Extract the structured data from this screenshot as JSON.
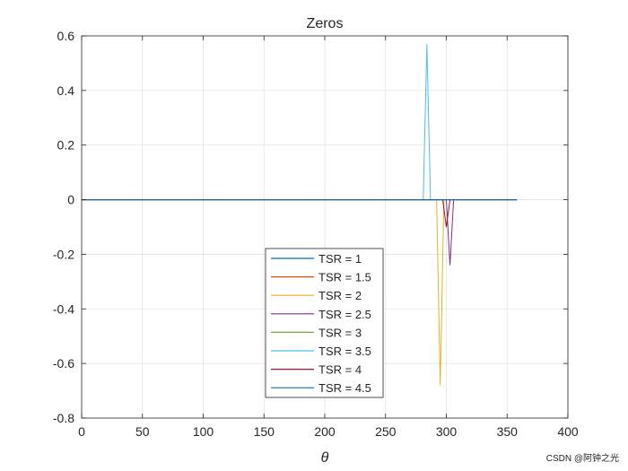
{
  "chart_data": {
    "type": "line",
    "title": "Zeros",
    "xlabel": "θ",
    "ylabel": "",
    "xlim": [
      0,
      400
    ],
    "ylim": [
      -0.8,
      0.6
    ],
    "xticks": [
      0,
      50,
      100,
      150,
      200,
      250,
      300,
      350,
      400
    ],
    "xtick_labels": [
      "0",
      "50",
      "100",
      "150",
      "200",
      "250",
      "300",
      "350",
      "400"
    ],
    "yticks": [
      -0.8,
      -0.6,
      -0.4,
      -0.2,
      0,
      0.2,
      0.4,
      0.6
    ],
    "ytick_labels": [
      "-0.8",
      "-0.6",
      "-0.4",
      "-0.2",
      "0",
      "0.2",
      "0.4",
      "0.6"
    ],
    "grid": true,
    "legend_position": "bottom-center",
    "series": [
      {
        "name": "TSR = 1",
        "color": "#0072BD",
        "x": [
          0,
          358
        ],
        "y": [
          0,
          0
        ]
      },
      {
        "name": "TSR = 1.5",
        "color": "#D95319",
        "x": [
          0,
          358
        ],
        "y": [
          0,
          0
        ]
      },
      {
        "name": "TSR = 2",
        "color": "#EDB120",
        "x": [
          0,
          292,
          295,
          298,
          358
        ],
        "y": [
          0,
          0,
          -0.68,
          0,
          0
        ]
      },
      {
        "name": "TSR = 2.5",
        "color": "#7E2F8E",
        "x": [
          0,
          300,
          303,
          306,
          358
        ],
        "y": [
          0,
          0,
          -0.24,
          0,
          0
        ]
      },
      {
        "name": "TSR = 3",
        "color": "#77AC30",
        "x": [
          0,
          358
        ],
        "y": [
          0,
          0
        ]
      },
      {
        "name": "TSR = 3.5",
        "color": "#4DBEEE",
        "x": [
          0,
          281,
          284,
          287,
          358
        ],
        "y": [
          0,
          0,
          0.57,
          0,
          0
        ]
      },
      {
        "name": "TSR = 4",
        "color": "#A2142F",
        "x": [
          0,
          297,
          300,
          303,
          358
        ],
        "y": [
          0,
          0,
          -0.1,
          0,
          0
        ]
      },
      {
        "name": "TSR = 4.5",
        "color": "#0072BD",
        "x": [
          0,
          358
        ],
        "y": [
          0,
          0
        ]
      }
    ]
  },
  "watermark": "CSDN @阿钟之光"
}
